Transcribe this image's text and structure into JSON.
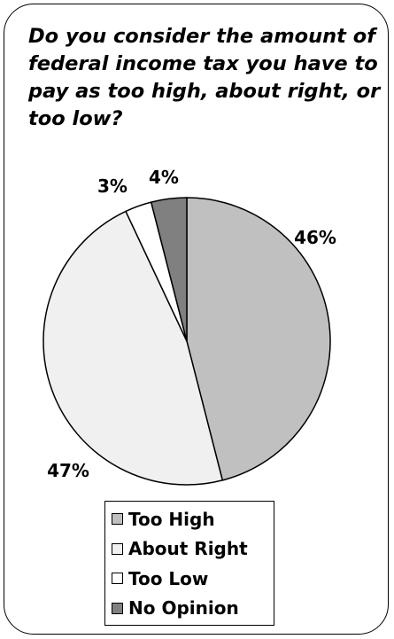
{
  "chart_data": {
    "type": "pie",
    "title": "Do you consider the amount of federal income tax you have to pay as too high, about right, or too low?",
    "slices": [
      {
        "name": "Too High",
        "value": 46,
        "label": "46%",
        "color": "#c0c0c0"
      },
      {
        "name": "About Right",
        "value": 47,
        "label": "47%",
        "color": "#f0f0f0"
      },
      {
        "name": "Too Low",
        "value": 3,
        "label": "3%",
        "color": "#ffffff"
      },
      {
        "name": "No Opinion",
        "value": 4,
        "label": "4%",
        "color": "#808080"
      }
    ],
    "legend_position": "bottom"
  }
}
